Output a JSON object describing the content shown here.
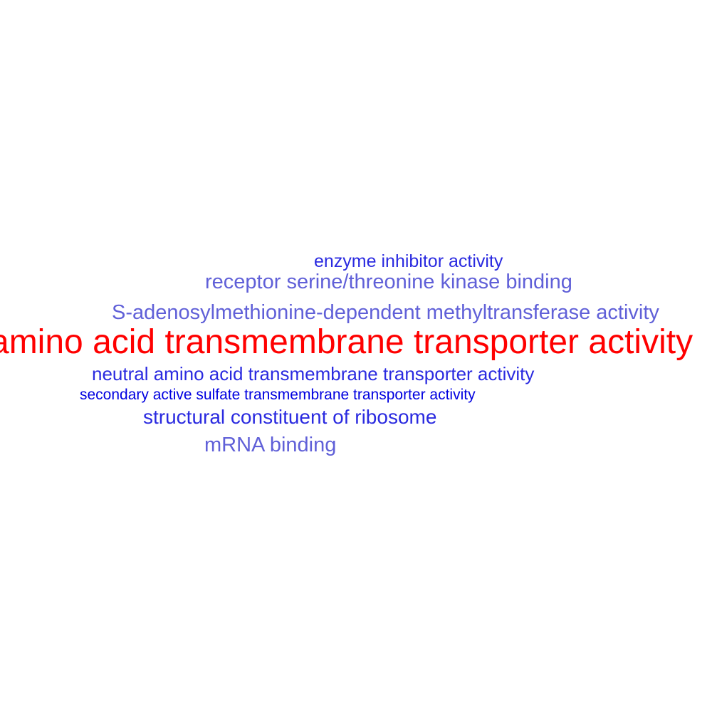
{
  "words": [
    {
      "text": "enzyme inhibitor activity",
      "color": "#2a2ae0"
    },
    {
      "text": "receptor serine/threonine kinase binding",
      "color": "#6060d8"
    },
    {
      "text": "S-adenosylmethionine-dependent methyltransferase activity",
      "color": "#6060d8"
    },
    {
      "text": "amino acid transmembrane transporter activity",
      "color": "#ff0000"
    },
    {
      "text": "neutral amino acid transmembrane transporter activity",
      "color": "#2a2ae0"
    },
    {
      "text": "secondary active sulfate transmembrane transporter activity",
      "color": "#0000e0"
    },
    {
      "text": "structural constituent of ribosome",
      "color": "#2a2ae0"
    },
    {
      "text": "mRNA binding",
      "color": "#6060d8"
    }
  ]
}
